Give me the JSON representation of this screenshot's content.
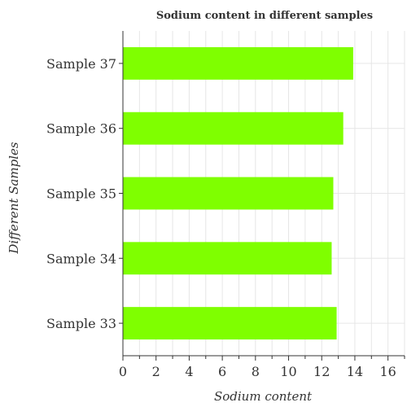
{
  "chart_data": {
    "type": "bar",
    "orientation": "horizontal",
    "title": "Sodium content in different samples",
    "xlabel": "Sodium content",
    "ylabel": "Different Samples",
    "categories": [
      "Sample 33",
      "Sample 34",
      "Sample 35",
      "Sample 36",
      "Sample 37"
    ],
    "values": [
      12.9,
      12.6,
      12.7,
      13.3,
      13.9
    ],
    "xlim": [
      0,
      17
    ],
    "xticks": [
      0,
      2,
      4,
      6,
      8,
      10,
      12,
      14,
      16
    ],
    "grid": true,
    "bar_color": "#7fff00"
  }
}
